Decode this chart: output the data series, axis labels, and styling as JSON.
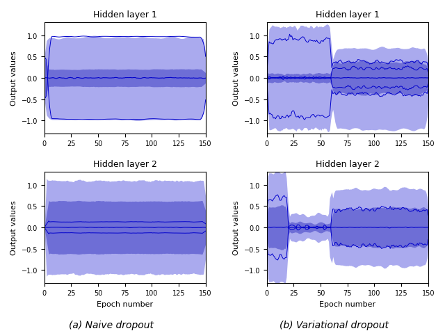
{
  "title_top_left": "Hidden layer 1",
  "title_top_right": "Hidden layer 1",
  "title_bot_left": "Hidden layer 2",
  "title_bot_right": "Hidden layer 2",
  "caption_left": "(a) Naive dropout",
  "caption_right": "(b) Variational dropout",
  "xlabel": "Epoch number",
  "ylabel": "Output values",
  "xlim": [
    0,
    150
  ],
  "ylim": [
    -1.3,
    1.3
  ],
  "n_epochs": 150,
  "fill_color_outer": "#aaaaee",
  "fill_color_inner": "#5555cc",
  "line_color": "#0000cc",
  "title_fontsize": 9,
  "label_fontsize": 8,
  "caption_fontsize": 10
}
